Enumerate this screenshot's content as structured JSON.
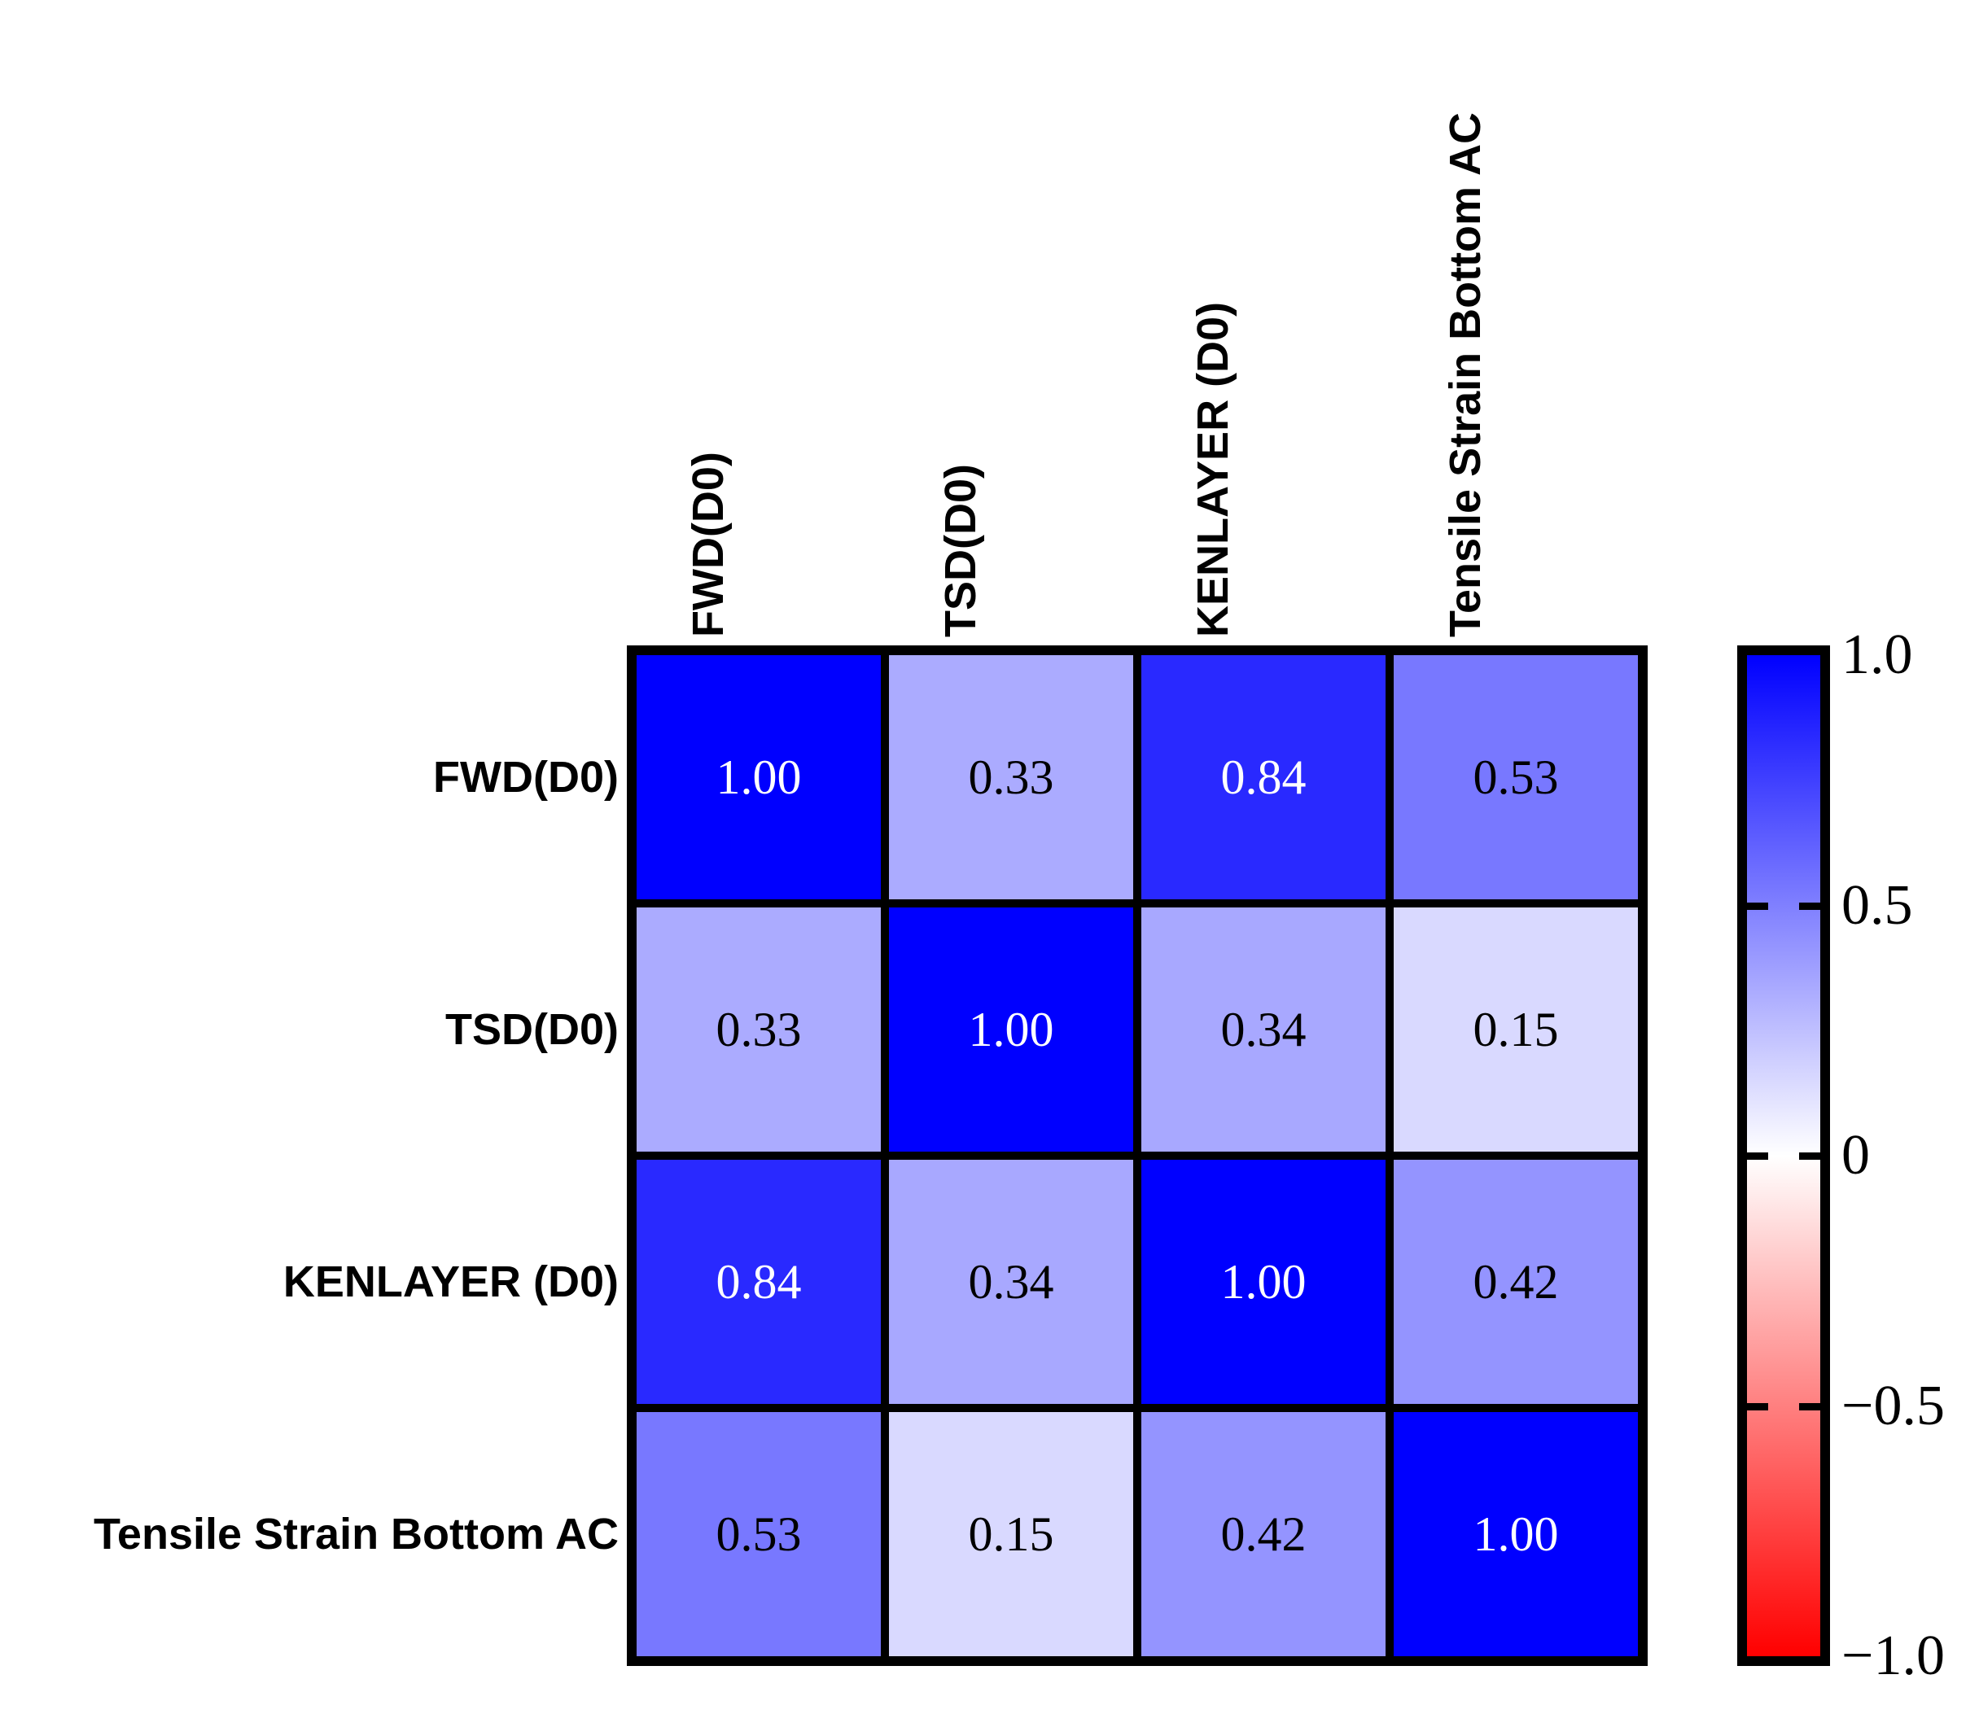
{
  "figure": {
    "background": "#FFFFFF"
  },
  "chart_data": {
    "type": "heatmap",
    "title": "",
    "categories_x": [
      "FWD(D0)",
      "TSD(D0)",
      "KENLAYER (D0)",
      "Tensile Strain Bottom AC"
    ],
    "categories_y": [
      "FWD(D0)",
      "TSD(D0)",
      "KENLAYER (D0)",
      "Tensile Strain Bottom AC"
    ],
    "matrix": [
      [
        1.0,
        0.33,
        0.84,
        0.53
      ],
      [
        0.33,
        1.0,
        0.34,
        0.15
      ],
      [
        0.84,
        0.34,
        1.0,
        0.42
      ],
      [
        0.53,
        0.15,
        0.42,
        1.0
      ]
    ],
    "cell_labels": [
      [
        "1.00",
        "0.33",
        "0.84",
        "0.53"
      ],
      [
        "0.33",
        "1.00",
        "0.34",
        "0.15"
      ],
      [
        "0.84",
        "0.34",
        "1.00",
        "0.42"
      ],
      [
        "0.53",
        "0.15",
        "0.42",
        "1.00"
      ]
    ],
    "value_range": [
      -1,
      1
    ],
    "grid_on": true,
    "grid_color": "#000000",
    "colormap": {
      "name": "blue-white-red",
      "max_color": "#0000FF",
      "mid_color": "#FFFFFF",
      "min_color": "#FF0000"
    },
    "cell_text_colors": {
      "light": "#FFFFFF",
      "dark": "#000000",
      "light_threshold": 0.7
    },
    "colorbar": {
      "position": "right",
      "ticks": [
        {
          "label": "1.0",
          "value": 1.0
        },
        {
          "label": "0.5",
          "value": 0.5
        },
        {
          "label": "0",
          "value": 0.0
        },
        {
          "label": "−0.5",
          "value": -0.5
        },
        {
          "label": "−1.0",
          "value": -1.0
        }
      ]
    }
  }
}
